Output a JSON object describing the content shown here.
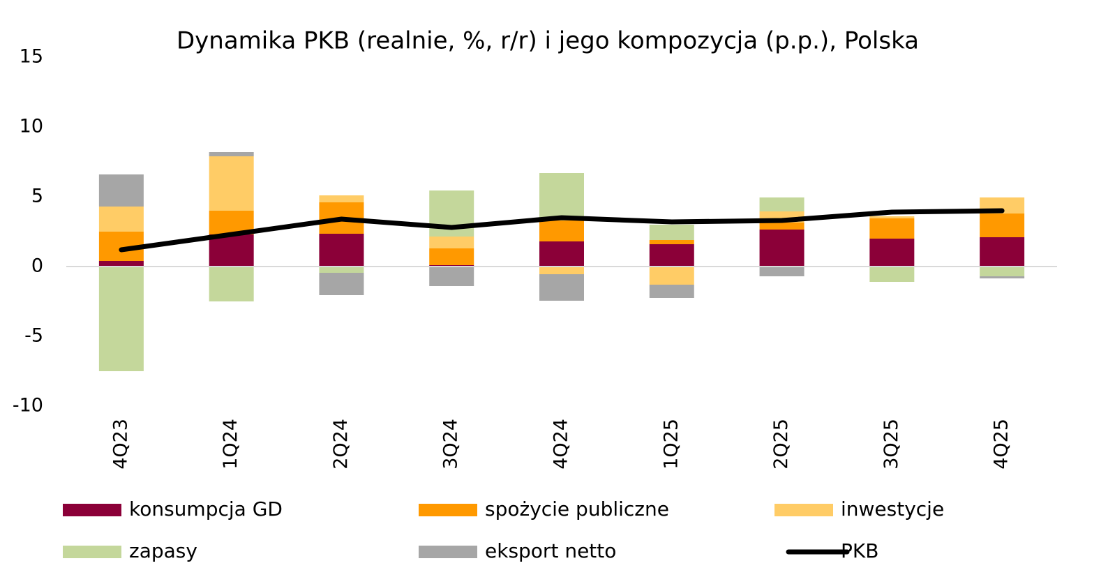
{
  "chart_data": {
    "type": "stacked-bar-line",
    "title": "Dynamika PKB (realnie, %, r/r) i jego kompozycja (p.p.), Polska",
    "categories": [
      "4Q23",
      "1Q24",
      "2Q24",
      "3Q24",
      "4Q24",
      "1Q25",
      "2Q25",
      "3Q25",
      "4Q25"
    ],
    "series": [
      {
        "name": "konsumpcja GD",
        "color": "#8b0038",
        "values": [
          0.4,
          2.3,
          2.35,
          0.1,
          1.8,
          1.6,
          2.65,
          2.0,
          2.1
        ]
      },
      {
        "name": "spożycie publiczne",
        "color": "#ff9900",
        "values": [
          2.1,
          1.7,
          2.25,
          1.2,
          1.5,
          0.3,
          0.5,
          1.45,
          1.7
        ]
      },
      {
        "name": "inwestycje",
        "color": "#ffcc66",
        "values": [
          1.8,
          3.9,
          0.5,
          0.85,
          -0.55,
          -1.3,
          0.8,
          0.15,
          1.15
        ]
      },
      {
        "name": "zapasy",
        "color": "#c4d79b",
        "values": [
          -7.5,
          -2.5,
          -0.45,
          3.3,
          3.4,
          1.1,
          1.0,
          -1.1,
          -0.7
        ]
      },
      {
        "name": "eksport netto",
        "color": "#a6a6a6",
        "values": [
          2.3,
          0.3,
          -1.6,
          -1.4,
          -1.9,
          -0.95,
          -0.7,
          0,
          -0.15
        ]
      },
      {
        "name": "PKB",
        "color": "#000000",
        "type": "line",
        "values": [
          1.2,
          2.3,
          3.4,
          2.8,
          3.5,
          3.2,
          3.3,
          3.9,
          4.0
        ]
      }
    ],
    "ylim": [
      -10,
      15
    ],
    "yticks": [
      -10,
      -5,
      0,
      5,
      10,
      15
    ]
  }
}
